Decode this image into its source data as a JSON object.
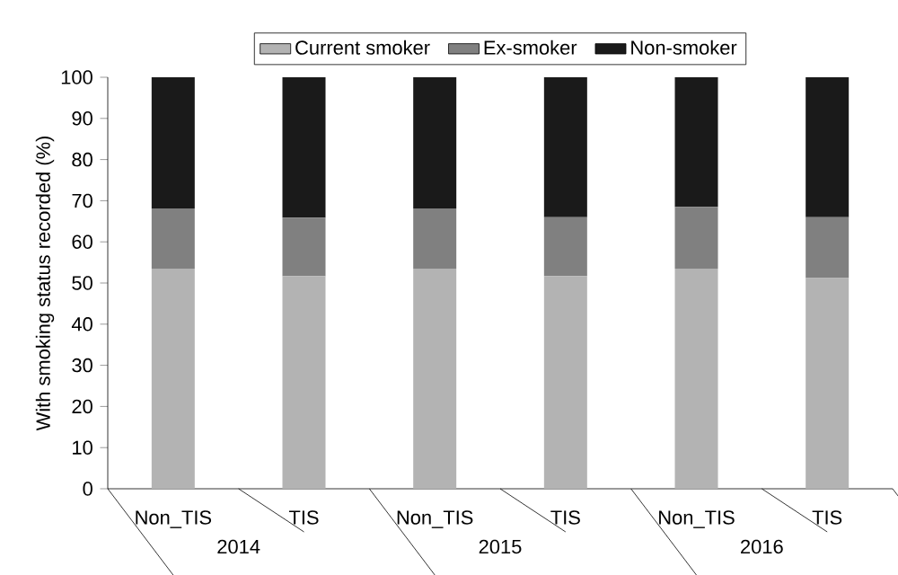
{
  "chart_data": {
    "type": "bar",
    "stacked": true,
    "ylabel": "With smoking status recorded (%)",
    "categories": [
      "Non_TIS",
      "TIS",
      "Non_TIS",
      "TIS",
      "Non_TIS",
      "TIS"
    ],
    "series": [
      {
        "name": "Current smoker",
        "color": "#b3b3b3",
        "values": [
          53.5,
          51.7,
          53.5,
          51.7,
          53.5,
          51.2
        ]
      },
      {
        "name": "Ex-smoker",
        "color": "#808080",
        "values": [
          14.6,
          14.2,
          14.6,
          14.3,
          15.0,
          14.8
        ]
      },
      {
        "name": "Non-smoker",
        "color": "#1a1a1a",
        "values": [
          31.9,
          34.1,
          31.9,
          34.0,
          31.5,
          34.0
        ]
      }
    ],
    "ylim": [
      0,
      100
    ],
    "yticks": [
      0,
      10,
      20,
      30,
      40,
      50,
      60,
      70,
      80,
      90,
      100
    ],
    "legend": "top",
    "annotations": [
      "2014",
      "2015",
      "2016"
    ]
  }
}
